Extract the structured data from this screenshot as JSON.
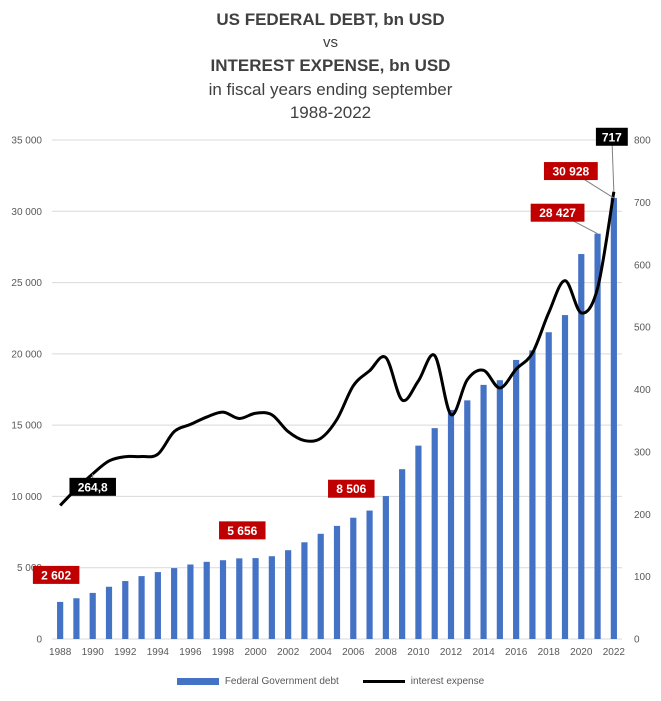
{
  "title": {
    "line1": "US FEDERAL DEBT, bn USD",
    "line2": "vs",
    "line3": "INTEREST EXPENSE, bn USD",
    "line4": "in fiscal years ending september",
    "line5": "1988-2022"
  },
  "legend": {
    "bar_label": "Federal Government debt",
    "line_label": "interest expense"
  },
  "chart_data": {
    "type": "bar",
    "x": [
      1988,
      1989,
      1990,
      1991,
      1992,
      1993,
      1994,
      1995,
      1996,
      1997,
      1998,
      1999,
      2000,
      2001,
      2002,
      2003,
      2004,
      2005,
      2006,
      2007,
      2008,
      2009,
      2010,
      2011,
      2012,
      2013,
      2014,
      2015,
      2016,
      2017,
      2018,
      2019,
      2020,
      2021,
      2022
    ],
    "x_tick_labels": [
      "1988",
      "1990",
      "1992",
      "1994",
      "1996",
      "1998",
      "2000",
      "2002",
      "2004",
      "2006",
      "2008",
      "2010",
      "2012",
      "2014",
      "2016",
      "2018",
      "2020",
      "2022"
    ],
    "series": [
      {
        "name": "Federal Government debt",
        "type": "bar",
        "axis": "left",
        "color": "#4472c4",
        "values": [
          2602,
          2857,
          3233,
          3665,
          4065,
          4411,
          4693,
          4974,
          5225,
          5413,
          5526,
          5656,
          5674,
          5807,
          6228,
          6783,
          7379,
          7933,
          8506,
          9008,
          10025,
          11910,
          13562,
          14790,
          16066,
          16738,
          17824,
          18151,
          19573,
          20245,
          21516,
          22719,
          27000,
          28427,
          30928
        ]
      },
      {
        "name": "interest expense",
        "type": "line",
        "axis": "right",
        "color": "#000000",
        "values": [
          214.1,
          240.9,
          264.8,
          285.5,
          292.3,
          292.5,
          296.3,
          332.4,
          344.0,
          355.8,
          363.8,
          353.5,
          362.0,
          359.5,
          332.5,
          318.1,
          321.7,
          352.3,
          405.9,
          430.0,
          451.2,
          383.1,
          413.9,
          454.4,
          359.8,
          415.7,
          430.8,
          402.4,
          432.6,
          458.5,
          523.0,
          574.6,
          522.8,
          562.4,
          717.0
        ]
      }
    ],
    "data_labels": [
      {
        "x": 1988,
        "text": "2 602",
        "style": "red"
      },
      {
        "x": 1999,
        "text": "5 656",
        "style": "red"
      },
      {
        "x": 2006,
        "text": "8 506",
        "style": "red"
      },
      {
        "x": 2021,
        "text": "28 427",
        "style": "red"
      },
      {
        "x": 2022,
        "text": "30 928",
        "style": "red"
      },
      {
        "x": 1990,
        "text": "264,8",
        "style": "black"
      },
      {
        "x": 2022,
        "text": "717",
        "style": "black"
      }
    ],
    "y_left": {
      "min": 0,
      "max": 35000,
      "ticks": [
        "0",
        "5 000",
        "10 000",
        "15 000",
        "20 000",
        "25 000",
        "30 000",
        "35 000"
      ]
    },
    "y_right": {
      "min": 0,
      "max": 800,
      "ticks": [
        "0",
        "100",
        "200",
        "300",
        "400",
        "500",
        "600",
        "700",
        "800"
      ]
    },
    "grid": true,
    "legend_position": "bottom"
  }
}
